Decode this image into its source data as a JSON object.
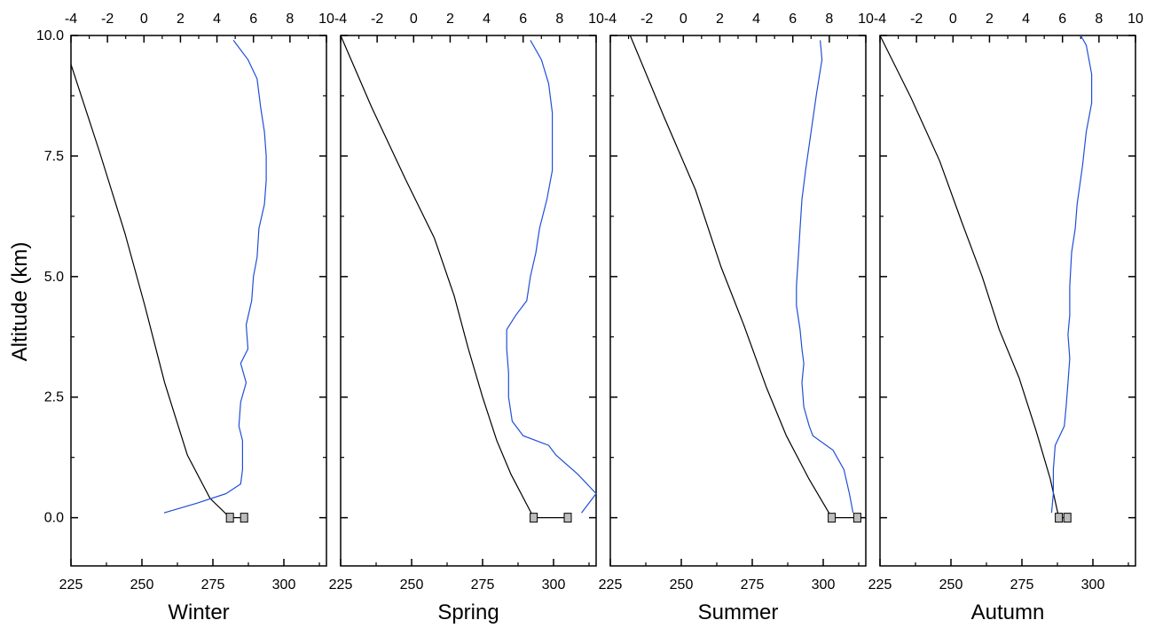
{
  "colors": {
    "temperature_line": "#000000",
    "secondary_line": "#1f4fd8",
    "marker_fill": "#bdbdbd"
  },
  "chart_data": {
    "type": "line",
    "ylabel": "Altitude (km)",
    "ylim": [
      -1,
      10
    ],
    "yticks": [
      "0.0",
      "2.5",
      "5.0",
      "7.5",
      "10.0"
    ],
    "xlim_bottom": [
      225,
      315
    ],
    "xticks_bottom": [
      "225",
      "250",
      "275",
      "300"
    ],
    "xlim_top": [
      -4,
      10
    ],
    "xticks_top": [
      "-4",
      "-2",
      "0",
      "2",
      "4",
      "6",
      "8",
      "10"
    ],
    "panels": [
      {
        "xlabel": "Winter",
        "series": [
          {
            "axis": "bottom",
            "color": "temperature_line",
            "points": [
              [
                225,
                9.4
              ],
              [
                235,
                7.6
              ],
              [
                244,
                5.9
              ],
              [
                251,
                4.4
              ],
              [
                258,
                2.8
              ],
              [
                266,
                1.3
              ],
              [
                274,
                0.4
              ],
              [
                281,
                0.0
              ]
            ]
          },
          {
            "axis": "top",
            "color": "secondary_line",
            "points": [
              [
                1.1,
                0.1
              ],
              [
                2.9,
                0.3
              ],
              [
                4.5,
                0.5
              ],
              [
                5.3,
                0.7
              ],
              [
                5.4,
                1.0
              ],
              [
                5.4,
                1.6
              ],
              [
                5.2,
                1.9
              ],
              [
                5.3,
                2.4
              ],
              [
                5.6,
                2.8
              ],
              [
                5.3,
                3.2
              ],
              [
                5.7,
                3.5
              ],
              [
                5.6,
                4.0
              ],
              [
                5.9,
                4.5
              ],
              [
                6.0,
                5.0
              ],
              [
                6.2,
                5.4
              ],
              [
                6.3,
                6.0
              ],
              [
                6.6,
                6.5
              ],
              [
                6.7,
                7.0
              ],
              [
                6.7,
                7.5
              ],
              [
                6.6,
                8.0
              ],
              [
                6.4,
                8.5
              ],
              [
                6.2,
                9.1
              ],
              [
                5.7,
                9.5
              ],
              [
                4.9,
                9.9
              ]
            ]
          },
          {
            "axis": "bottom",
            "color": "temperature_line",
            "markers": true,
            "points": [
              [
                281,
                0.0
              ],
              [
                286,
                0.0
              ]
            ]
          }
        ]
      },
      {
        "xlabel": "Spring",
        "series": [
          {
            "axis": "bottom",
            "color": "temperature_line",
            "points": [
              [
                225,
                10.0
              ],
              [
                236,
                8.5
              ],
              [
                248,
                7.0
              ],
              [
                258,
                5.8
              ],
              [
                265,
                4.6
              ],
              [
                270,
                3.5
              ],
              [
                275,
                2.5
              ],
              [
                280,
                1.6
              ],
              [
                285,
                0.9
              ],
              [
                293,
                0.0
              ]
            ]
          },
          {
            "axis": "top",
            "color": "secondary_line",
            "points": [
              [
                9.2,
                0.1
              ],
              [
                10.0,
                0.5
              ],
              [
                9.0,
                0.9
              ],
              [
                7.8,
                1.3
              ],
              [
                7.4,
                1.5
              ],
              [
                6.0,
                1.7
              ],
              [
                5.4,
                2.0
              ],
              [
                5.2,
                2.5
              ],
              [
                5.2,
                3.0
              ],
              [
                5.1,
                3.5
              ],
              [
                5.1,
                3.9
              ],
              [
                5.6,
                4.2
              ],
              [
                6.2,
                4.5
              ],
              [
                6.4,
                5.0
              ],
              [
                6.7,
                5.5
              ],
              [
                6.9,
                6.0
              ],
              [
                7.3,
                6.6
              ],
              [
                7.6,
                7.2
              ],
              [
                7.6,
                7.8
              ],
              [
                7.6,
                8.4
              ],
              [
                7.4,
                9.0
              ],
              [
                7.0,
                9.5
              ],
              [
                6.4,
                9.9
              ]
            ]
          },
          {
            "axis": "bottom",
            "color": "temperature_line",
            "markers": true,
            "points": [
              [
                293,
                0.0
              ],
              [
                305,
                0.0
              ]
            ]
          }
        ]
      },
      {
        "xlabel": "Summer",
        "series": [
          {
            "axis": "bottom",
            "color": "temperature_line",
            "points": [
              [
                232,
                10.0
              ],
              [
                244,
                8.3
              ],
              [
                255,
                6.8
              ],
              [
                264,
                5.2
              ],
              [
                272,
                4.0
              ],
              [
                280,
                2.7
              ],
              [
                287,
                1.7
              ],
              [
                295,
                0.8
              ],
              [
                303,
                0.0
              ]
            ]
          },
          {
            "axis": "top",
            "color": "secondary_line",
            "points": [
              [
                9.3,
                0.1
              ],
              [
                9.1,
                0.5
              ],
              [
                8.8,
                1.0
              ],
              [
                8.2,
                1.4
              ],
              [
                7.1,
                1.7
              ],
              [
                6.9,
                1.9
              ],
              [
                6.6,
                2.3
              ],
              [
                6.5,
                2.8
              ],
              [
                6.6,
                3.2
              ],
              [
                6.5,
                3.5
              ],
              [
                6.4,
                3.9
              ],
              [
                6.2,
                4.4
              ],
              [
                6.2,
                4.8
              ],
              [
                6.3,
                5.4
              ],
              [
                6.4,
                6.0
              ],
              [
                6.5,
                6.6
              ],
              [
                6.7,
                7.2
              ],
              [
                7.0,
                8.0
              ],
              [
                7.3,
                8.8
              ],
              [
                7.6,
                9.5
              ],
              [
                7.5,
                9.9
              ]
            ]
          },
          {
            "axis": "bottom",
            "color": "temperature_line",
            "markers": true,
            "points": [
              [
                303,
                0.0
              ],
              [
                312,
                0.0
              ]
            ]
          }
        ]
      },
      {
        "xlabel": "Autumn",
        "series": [
          {
            "axis": "bottom",
            "color": "temperature_line",
            "points": [
              [
                225,
                10.0
              ],
              [
                236,
                8.7
              ],
              [
                246,
                7.4
              ],
              [
                254,
                6.1
              ],
              [
                261,
                5.0
              ],
              [
                267,
                3.9
              ],
              [
                274,
                2.9
              ],
              [
                280,
                1.8
              ],
              [
                285,
                0.8
              ],
              [
                288,
                0.0
              ]
            ]
          },
          {
            "axis": "top",
            "color": "secondary_line",
            "points": [
              [
                5.4,
                0.1
              ],
              [
                5.5,
                0.5
              ],
              [
                5.5,
                1.0
              ],
              [
                5.6,
                1.5
              ],
              [
                6.1,
                1.9
              ],
              [
                6.2,
                2.3
              ],
              [
                6.3,
                2.8
              ],
              [
                6.4,
                3.3
              ],
              [
                6.3,
                3.8
              ],
              [
                6.4,
                4.2
              ],
              [
                6.4,
                4.8
              ],
              [
                6.5,
                5.5
              ],
              [
                6.7,
                6.0
              ],
              [
                6.8,
                6.5
              ],
              [
                7.1,
                7.3
              ],
              [
                7.3,
                8.0
              ],
              [
                7.6,
                8.6
              ],
              [
                7.6,
                9.2
              ],
              [
                7.3,
                9.8
              ],
              [
                7.0,
                10.0
              ]
            ]
          },
          {
            "axis": "bottom",
            "color": "temperature_line",
            "markers": true,
            "points": [
              [
                288,
                0.0
              ],
              [
                291,
                0.0
              ]
            ]
          }
        ]
      }
    ]
  }
}
